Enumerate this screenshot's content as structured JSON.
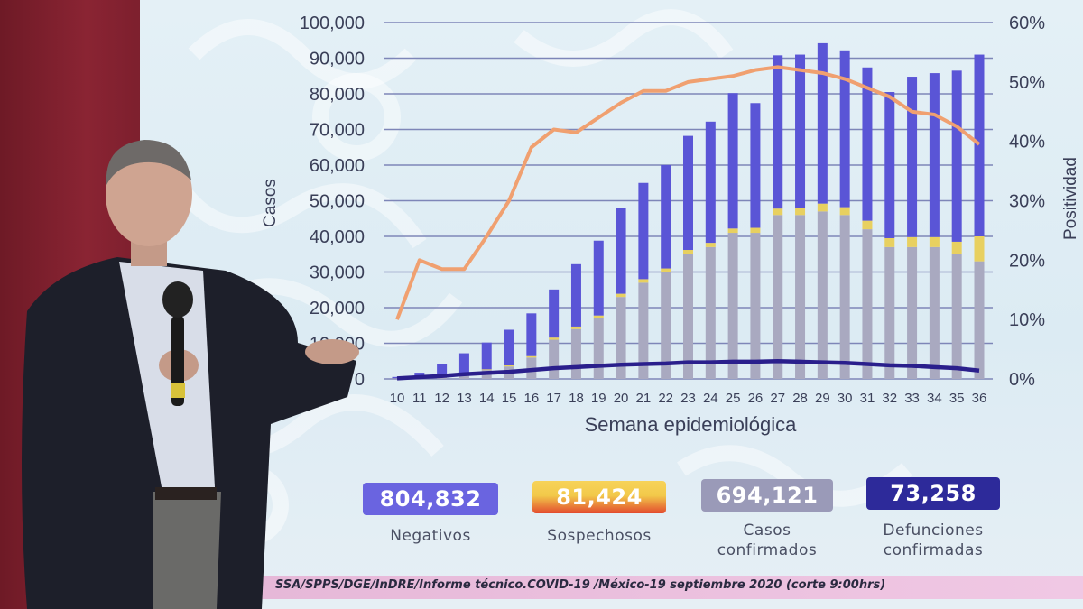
{
  "chart_data": {
    "type": "bar",
    "xlabel": "Semana epidemiológica",
    "ylabel": "Casos",
    "y2label": "Positividad",
    "ylim": [
      0,
      100000
    ],
    "y2lim": [
      0,
      60
    ],
    "yticks": [
      "100,000",
      "90,000",
      "80,000",
      "70,000",
      "60,000",
      "50,000",
      "40,000",
      "30,000",
      "20,000",
      "10,000",
      "0"
    ],
    "y2ticks": [
      "60%",
      "50%",
      "40%",
      "30%",
      "20%",
      "10%",
      "0%"
    ],
    "categories": [
      "10",
      "11",
      "12",
      "13",
      "14",
      "15",
      "16",
      "17",
      "18",
      "19",
      "20",
      "21",
      "22",
      "23",
      "24",
      "25",
      "26",
      "27",
      "28",
      "29",
      "30",
      "31",
      "32",
      "33",
      "34",
      "35",
      "36"
    ],
    "series": [
      {
        "stack": "bar",
        "color": "#a9a9c0",
        "values": [
          100,
          200,
          800,
          1500,
          2500,
          3500,
          6000,
          11000,
          14000,
          17000,
          23000,
          27000,
          30000,
          35000,
          37000,
          41000,
          41000,
          46000,
          46000,
          47000,
          46000,
          42000,
          37000,
          37000,
          37000,
          35000,
          33000
        ]
      },
      {
        "stack": "bar",
        "color": "#e8d060",
        "values": [
          50,
          50,
          100,
          200,
          200,
          300,
          400,
          600,
          700,
          800,
          900,
          1000,
          1000,
          1200,
          1200,
          1200,
          1400,
          1800,
          2000,
          2200,
          2200,
          2400,
          2500,
          2800,
          2800,
          3500,
          7000
        ]
      },
      {
        "stack": "bar",
        "color": "#5a55d6",
        "values": [
          400,
          1500,
          3200,
          5500,
          7500,
          10000,
          12000,
          13500,
          17500,
          21000,
          24000,
          27000,
          29000,
          32000,
          34000,
          38000,
          35000,
          43000,
          43000,
          45000,
          44000,
          43000,
          41000,
          45000,
          46000,
          48000,
          51000
        ]
      },
      {
        "type": "line",
        "axis": "y2",
        "color": "#f0a070",
        "values": [
          10,
          20,
          18.5,
          18.5,
          24,
          30,
          39,
          42,
          41.5,
          44,
          46.5,
          48.5,
          48.5,
          50,
          50.5,
          51,
          52,
          52.5,
          52,
          51.5,
          50.5,
          49,
          47.5,
          45,
          44.5,
          42.5,
          39.5
        ]
      },
      {
        "type": "line",
        "axis": "y2",
        "color": "#2a1f8c",
        "values": [
          0.1,
          0.3,
          0.5,
          0.8,
          1.0,
          1.2,
          1.5,
          1.8,
          2.0,
          2.2,
          2.4,
          2.5,
          2.6,
          2.8,
          2.8,
          2.9,
          2.9,
          3.0,
          2.9,
          2.8,
          2.7,
          2.5,
          2.3,
          2.2,
          2.0,
          1.8,
          1.4
        ]
      }
    ]
  },
  "summary": [
    {
      "value": "804,832",
      "label": "Negativos",
      "color": "#6a64e0"
    },
    {
      "value": "81,424",
      "label": "Sospechosos",
      "color": "#f2c94a"
    },
    {
      "value": "694,121",
      "label": "Casos confirmados",
      "color": "#9a9ab8"
    },
    {
      "value": "73,258",
      "label": "Defunciones confirmadas",
      "color": "#2d2a9a"
    }
  ],
  "footer": {
    "source": "SSA/SPPS/DGE/InDRE/Informe técnico.COVID-19 /México-19 septiembre 2020 (corte 9:00hrs)"
  }
}
